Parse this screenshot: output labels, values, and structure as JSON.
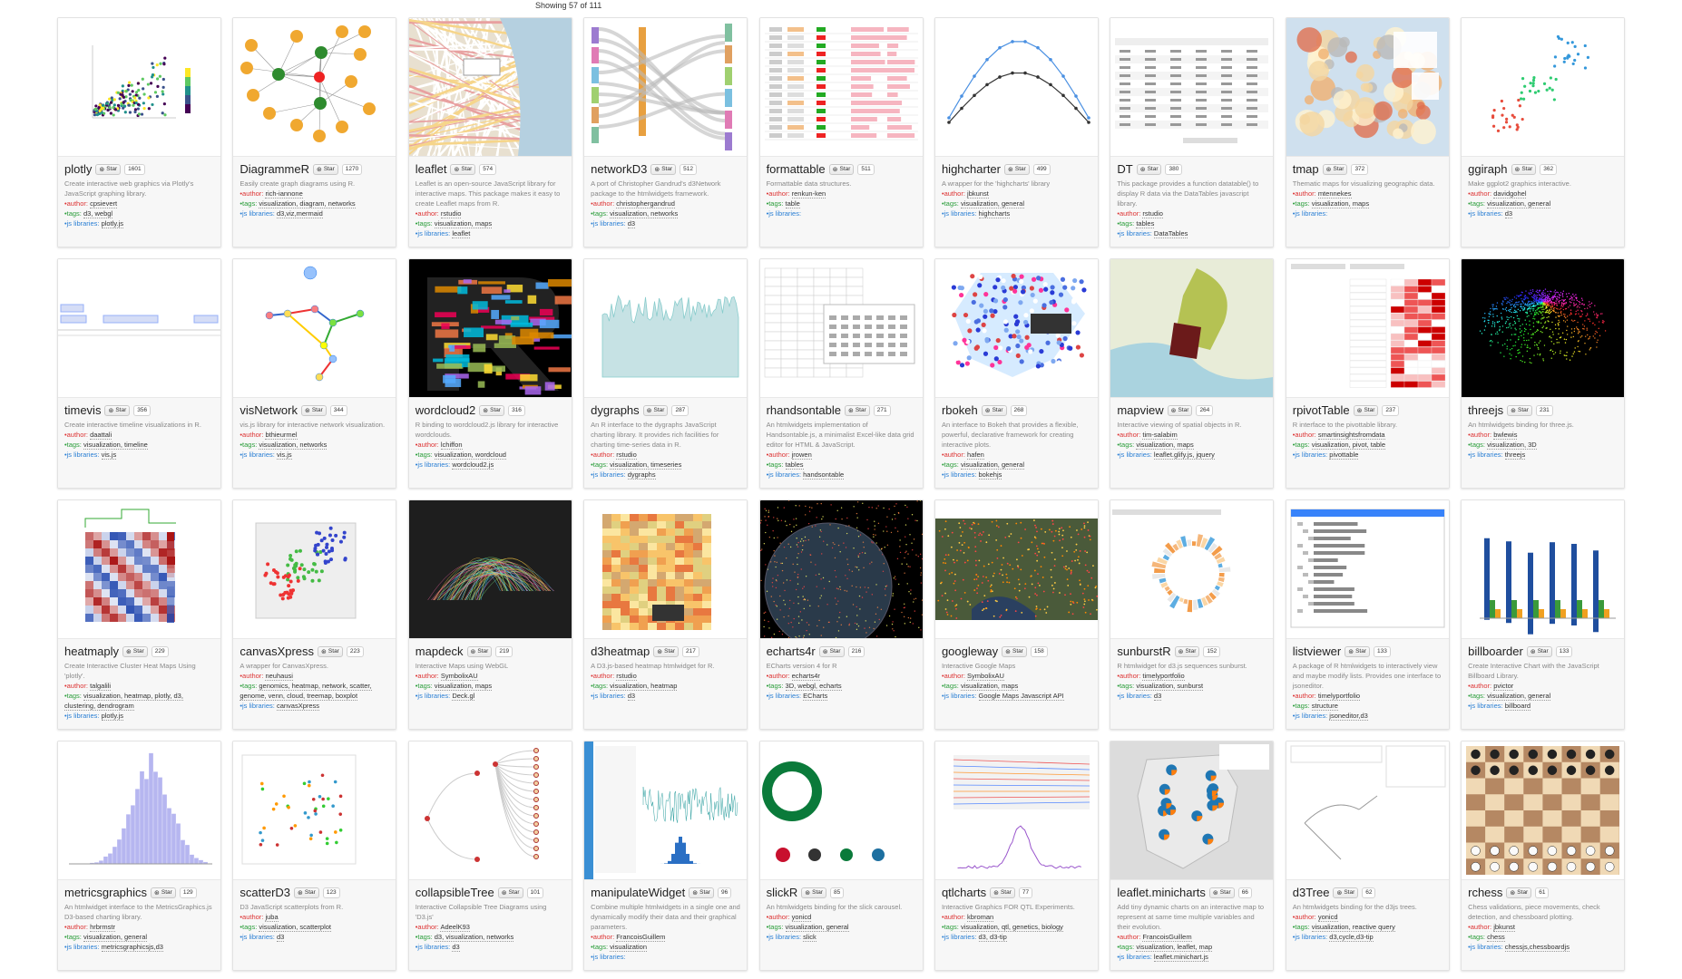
{
  "header": {
    "showing": "Showing 57 of 111"
  },
  "labels": {
    "star": "Star",
    "author": "•author:",
    "tags": "•tags:",
    "js": "•js libraries:"
  },
  "colors": {
    "author": "#d33333",
    "tags": "#2a9d3a",
    "js": "#2a7fd4"
  },
  "widgets": [
    {
      "name": "plotly",
      "count": "1601",
      "desc": "Create interactive web graphics via Plotly's JavaScript graphing library.",
      "author": "cpsievert",
      "tags": "d3, webgl",
      "js": "plotly.js",
      "thumb": "scatter-color"
    },
    {
      "name": "DiagrammeR",
      "count": "1270",
      "desc": "Easily create graph diagrams using R.",
      "author": "rich-iannone",
      "tags": "visualization, diagram, networks",
      "js": "d3,viz,mermaid",
      "thumb": "graph-nodes"
    },
    {
      "name": "leaflet",
      "count": "574",
      "desc": "Leaflet is an open-source JavaScript library for interactive maps. This package makes it easy to create Leaflet maps from R.",
      "author": "rstudio",
      "tags": "visualization, maps",
      "js": "leaflet",
      "thumb": "street-map"
    },
    {
      "name": "networkD3",
      "count": "512",
      "desc": "A port of Christopher Gandrud's d3Network package to the htmlwidgets framework.",
      "author": "christophergandrud",
      "tags": "visualization, networks",
      "js": "d3",
      "thumb": "sankey"
    },
    {
      "name": "formattable",
      "count": "511",
      "desc": "Formattable data structures.",
      "author": "renkun-ken",
      "tags": "table",
      "js": "",
      "thumb": "format-table"
    },
    {
      "name": "highcharter",
      "count": "499",
      "desc": "A wrapper for the 'highcharts' library",
      "author": "jbkunst",
      "tags": "visualization, general",
      "js": "highcharts",
      "thumb": "line-two"
    },
    {
      "name": "DT",
      "count": "380",
      "desc": "This package provides a function datatable() to display R data via the DataTables javascript library.",
      "author": "rstudio",
      "tags": "tables",
      "js": "DataTables",
      "thumb": "datatable"
    },
    {
      "name": "tmap",
      "count": "372",
      "desc": "Thematic maps for visualizing geographic data.",
      "author": "mtennekes",
      "tags": "visualization, maps",
      "js": "",
      "thumb": "world-map"
    },
    {
      "name": "ggiraph",
      "count": "362",
      "desc": "Make ggplot2 graphics interactive.",
      "author": "davidgohel",
      "tags": "visualization, general",
      "js": "d3",
      "thumb": "scatter-species"
    },
    {
      "name": "timevis",
      "count": "356",
      "desc": "Create interactive timeline visualizations in R.",
      "author": "daattali",
      "tags": "visualization, timeline",
      "js": "vis.js",
      "thumb": "timeline"
    },
    {
      "name": "visNetwork",
      "count": "344",
      "desc": "vis.js library for interactive network visualization.",
      "author": "bthieurmel",
      "tags": "visualization, networks",
      "js": "vis.js",
      "thumb": "visnet"
    },
    {
      "name": "wordcloud2",
      "count": "316",
      "desc": "R binding to wordcloud2.js library for interactive wordclouds.",
      "author": "lchiffon",
      "tags": "visualization, wordcloud",
      "js": "wordcloud2.js",
      "thumb": "wordcloud"
    },
    {
      "name": "dygraphs",
      "count": "287",
      "desc": "An R interface to the dygraphs JavaScript charting library. It provides rich facilities for charting time-series data in R.",
      "author": "rstudio",
      "tags": "visualization, timeseries",
      "js": "dygraphs",
      "thumb": "timeseries"
    },
    {
      "name": "rhandsontable",
      "count": "271",
      "desc": "An htmlwidgets implementation of Handsontable.js, a minimalist Excel-like data grid editor for HTML & JavaScript.",
      "author": "jrowen",
      "tags": "tables",
      "js": "handsontable",
      "thumb": "handson"
    },
    {
      "name": "rbokeh",
      "count": "268",
      "desc": "An interface to Bokeh that provides a flexible, powerful, declarative framework for creating interactive plots.",
      "author": "hafen",
      "tags": "visualization, general",
      "js": "bokehjs",
      "thumb": "hexbin"
    },
    {
      "name": "mapview",
      "count": "264",
      "desc": "Interactive viewing of spatial objects in R.",
      "author": "tim-salabim",
      "tags": "visualization, maps",
      "js": "leaflet.glify.js, jquery",
      "thumb": "mapview"
    },
    {
      "name": "rpivotTable",
      "count": "237",
      "desc": "R interface to the pivottable library.",
      "author": "smartinsightsfromdata",
      "tags": "visualization, pivot, table",
      "js": "pivottable",
      "thumb": "pivot"
    },
    {
      "name": "threejs",
      "count": "231",
      "desc": "An htmlwidgets binding for three.js.",
      "author": "bwlewis",
      "tags": "visualization, 3D",
      "js": "threejs",
      "thumb": "three"
    },
    {
      "name": "heatmaply",
      "count": "229",
      "desc": "Create Interactive Cluster Heat Maps Using 'plotly'.",
      "author": "talgalili",
      "tags": "visualization, heatmap, plotly, d3, clustering, dendrogram",
      "js": "plotly.js",
      "thumb": "heatmap-rb"
    },
    {
      "name": "canvasXpress",
      "count": "223",
      "desc": "A wrapper for CanvasXpress.",
      "author": "neuhausi",
      "tags": "genomics, heatmap, network, scatter, genome, venn, cloud, treemap, boxplot",
      "js": "canvasXpress",
      "thumb": "scatter3d"
    },
    {
      "name": "mapdeck",
      "count": "219",
      "desc": "Interactive Maps using WebGL",
      "author": "SymbolixAU",
      "tags": "visualization, maps",
      "js": "Deck.gl",
      "thumb": "arcs"
    },
    {
      "name": "d3heatmap",
      "count": "217",
      "desc": "A D3.js-based heatmap htmlwidget for R.",
      "author": "rstudio",
      "tags": "visualization, heatmap",
      "js": "d3",
      "thumb": "heatmap-yo"
    },
    {
      "name": "echarts4r",
      "count": "216",
      "desc": "ECharts version 4 for R",
      "author": "echarts4r",
      "tags": "3D, webgl, echarts",
      "js": "ECharts",
      "thumb": "globe"
    },
    {
      "name": "googleway",
      "count": "158",
      "desc": "Interactive Google Maps",
      "author": "SymbolixAU",
      "tags": "visualization, maps",
      "js": "Google Maps Javascript API",
      "thumb": "gmap"
    },
    {
      "name": "sunburstR",
      "count": "152",
      "desc": "R htmlwidget for d3.js sequences sunburst.",
      "author": "timelyportfolio",
      "tags": "visualization, sunburst",
      "js": "d3",
      "thumb": "sunburst"
    },
    {
      "name": "listviewer",
      "count": "133",
      "desc": "A package of R htmlwidgets to interactively view and maybe modify lists. Provides one interface to jsoneditor.",
      "author": "timelyportfolio",
      "tags": "structure",
      "js": "jsoneditor,d3",
      "thumb": "listview"
    },
    {
      "name": "billboarder",
      "count": "133",
      "desc": "Create Interactive Chart with the JavaScript Billboard Library.",
      "author": "pvictor",
      "tags": "visualization, general",
      "js": "billboard",
      "thumb": "bars"
    },
    {
      "name": "metricsgraphics",
      "count": "129",
      "desc": "An htmlwidget interface to the MetricsGraphics.js D3-based charting library.",
      "author": "hrbrmstr",
      "tags": "visualization, general",
      "js": "metricsgraphicsjs,d3",
      "thumb": "histogram"
    },
    {
      "name": "scatterD3",
      "count": "123",
      "desc": "D3 JavaScript scatterplots from R.",
      "author": "juba",
      "tags": "visualization, scatterplot",
      "js": "d3",
      "thumb": "scatter-labels"
    },
    {
      "name": "collapsibleTree",
      "count": "101",
      "desc": "Interactive Collapsible Tree Diagrams using 'D3.js'",
      "author": "AdeelK93",
      "tags": "d3, visualization, networks",
      "js": "d3",
      "thumb": "tree"
    },
    {
      "name": "manipulateWidget",
      "count": "96",
      "desc": "Combine multiple htmlwidgets in a single one and dynamically modify their data and their graphical parameters.",
      "author": "FrancoisGuillem",
      "tags": "visualization",
      "js": "",
      "thumb": "manip"
    },
    {
      "name": "slickR",
      "count": "85",
      "desc": "An htmlwidgets binding for the slick carousel.",
      "author": "yonicd",
      "tags": "visualization, general",
      "js": "slick",
      "thumb": "logos"
    },
    {
      "name": "qtlcharts",
      "count": "77",
      "desc": "Interactive Graphics FOR QTL Experiments.",
      "author": "kbroman",
      "tags": "visualization, qtl, genetics, biology",
      "js": "d3, d3-tip",
      "thumb": "qtl"
    },
    {
      "name": "leaflet.minicharts",
      "count": "66",
      "desc": "Add tiny dynamic charts on an interactive map to represent at same time multiple variables and their evolution.",
      "author": "FrancoisGuillem",
      "tags": "visualization, leaflet, map",
      "js": "leaflet.minichart.js",
      "thumb": "minicharts"
    },
    {
      "name": "d3Tree",
      "count": "62",
      "desc": "An htmlwidgets binding for the d3js trees.",
      "author": "yonicd",
      "tags": "visualization, reactive query",
      "js": "d3,cycle,d3-tip",
      "thumb": "d3tree"
    },
    {
      "name": "rchess",
      "count": "61",
      "desc": "Chess validations, piece movements, check detection, and chessboard plotting.",
      "author": "jbkunst",
      "tags": "chess",
      "js": "chessjs,chessboardjs",
      "thumb": "chess"
    }
  ]
}
